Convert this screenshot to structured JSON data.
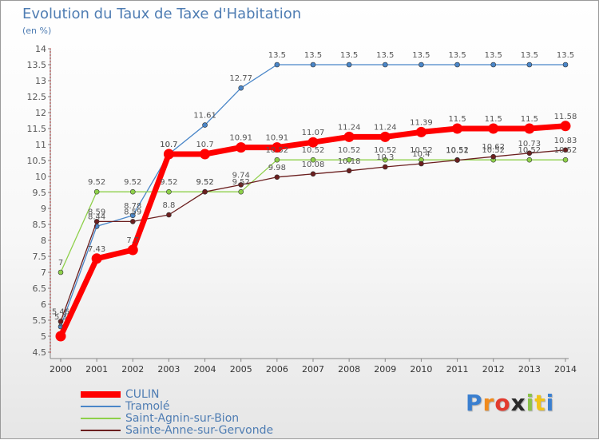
{
  "colors": {
    "CULIN": "#ff0000",
    "Tramolé": "#4a86c8",
    "Saint-Agnin-sur-Bion": "#8ed04a",
    "Sainte-Anne-sur-Gervonde": "#6b1f1f",
    "axis": "#888888",
    "grid": "#dddddd",
    "text": "#4f7db3"
  },
  "brand": {
    "letters": [
      "P",
      "r",
      "o",
      "x",
      "i",
      "t",
      "i"
    ],
    "colors": [
      "#3a7fd0",
      "#f08a1c",
      "#e23b2e",
      "#2a2a2a",
      "#8bc34a",
      "#f0c419",
      "#3a7fd0"
    ]
  },
  "chart_data": {
    "type": "line",
    "title": "Evolution du Taux de Taxe d'Habitation",
    "subtitle": "(en %)",
    "xlabel": "",
    "ylabel": "",
    "x": [
      "2000",
      "2001",
      "2002",
      "2003",
      "2004",
      "2005",
      "2006",
      "2007",
      "2008",
      "2009",
      "2010",
      "2011",
      "2012",
      "2013",
      "2014"
    ],
    "ylim": [
      4.5,
      14
    ],
    "y_ticks": [
      "4.5",
      "5",
      "5.5",
      "6",
      "6.5",
      "7",
      "7.5",
      "8",
      "8.5",
      "9",
      "9.5",
      "10",
      "10.5",
      "11",
      "11.5",
      "12",
      "12.5",
      "13",
      "13.5",
      "14"
    ],
    "grid": false,
    "legend_position": "bottom-left",
    "series": [
      {
        "name": "CULIN",
        "values": [
          5.0,
          7.43,
          7.7,
          10.7,
          10.7,
          10.91,
          10.91,
          11.07,
          11.24,
          11.24,
          11.39,
          11.5,
          11.5,
          11.5,
          11.58
        ],
        "labels": [
          "5",
          "7.43",
          "7.7",
          "10.7",
          "10.7",
          "10.91",
          "10.91",
          "11.07",
          "11.24",
          "11.24",
          "11.39",
          "11.5",
          "11.5",
          "11.5",
          "11.58"
        ]
      },
      {
        "name": "Tramolé",
        "values": [
          5.3,
          8.44,
          8.78,
          10.7,
          11.61,
          12.77,
          13.5,
          13.5,
          13.5,
          13.5,
          13.5,
          13.5,
          13.5,
          13.5,
          13.5
        ],
        "labels": [
          "5.3",
          "8.44",
          "8.78",
          "10.7",
          "11.61",
          "12.77",
          "13.5",
          "13.5",
          "13.5",
          "13.5",
          "13.5",
          "13.5",
          "13.5",
          "13.5",
          "13.5"
        ]
      },
      {
        "name": "Saint-Agnin-sur-Bion",
        "values": [
          7.0,
          9.52,
          9.52,
          9.52,
          9.52,
          9.52,
          10.52,
          10.52,
          10.52,
          10.52,
          10.52,
          10.52,
          10.52,
          10.52,
          10.52
        ],
        "labels": [
          "7",
          "9.52",
          "9.52",
          "9.52",
          "9.52",
          "9.52",
          "10.52",
          "10.52",
          "10.52",
          "10.52",
          "10.52",
          "10.52",
          "10.52",
          "10.52",
          "10.52"
        ]
      },
      {
        "name": "Sainte-Anne-sur-Gervonde",
        "values": [
          5.46,
          8.59,
          8.59,
          8.8,
          9.52,
          9.74,
          9.98,
          10.08,
          10.18,
          10.3,
          10.4,
          10.51,
          10.62,
          10.73,
          10.83
        ],
        "labels": [
          "5.46",
          "8.59",
          "8.59",
          "8.8",
          "9.52",
          "9.74",
          "9.98",
          "10.08",
          "10.18",
          "10.3",
          "10.4",
          "10.51",
          "10.62",
          "10.73",
          "10.83"
        ]
      }
    ]
  }
}
